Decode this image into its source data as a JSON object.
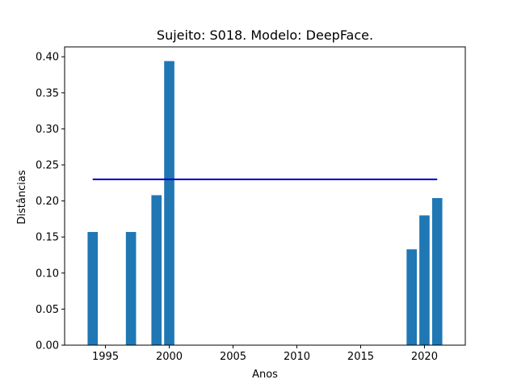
{
  "chart_data": {
    "type": "bar",
    "title": "Sujeito: S018. Modelo: DeepFace.",
    "xlabel": "Anos",
    "ylabel": "Distâncias",
    "x": [
      1994,
      1997,
      1999,
      2000,
      2019,
      2020,
      2021
    ],
    "values": [
      0.157,
      0.157,
      0.208,
      0.394,
      0.133,
      0.18,
      0.204
    ],
    "bar_color": "#1f77b4",
    "xlim": [
      1991.8,
      2023.2
    ],
    "ylim": [
      0,
      0.4137
    ],
    "xticks": [
      1995,
      2000,
      2005,
      2010,
      2015,
      2020
    ],
    "yticks": [
      0.0,
      0.05,
      0.1,
      0.15,
      0.2,
      0.25,
      0.3,
      0.35,
      0.4
    ],
    "ytick_labels": [
      "0.00",
      "0.05",
      "0.10",
      "0.15",
      "0.20",
      "0.25",
      "0.30",
      "0.35",
      "0.40"
    ],
    "reference_line": {
      "y": 0.23,
      "x_start": 1994,
      "x_end": 2021,
      "color": "#0000cc"
    },
    "grid": false,
    "legend": "none"
  }
}
